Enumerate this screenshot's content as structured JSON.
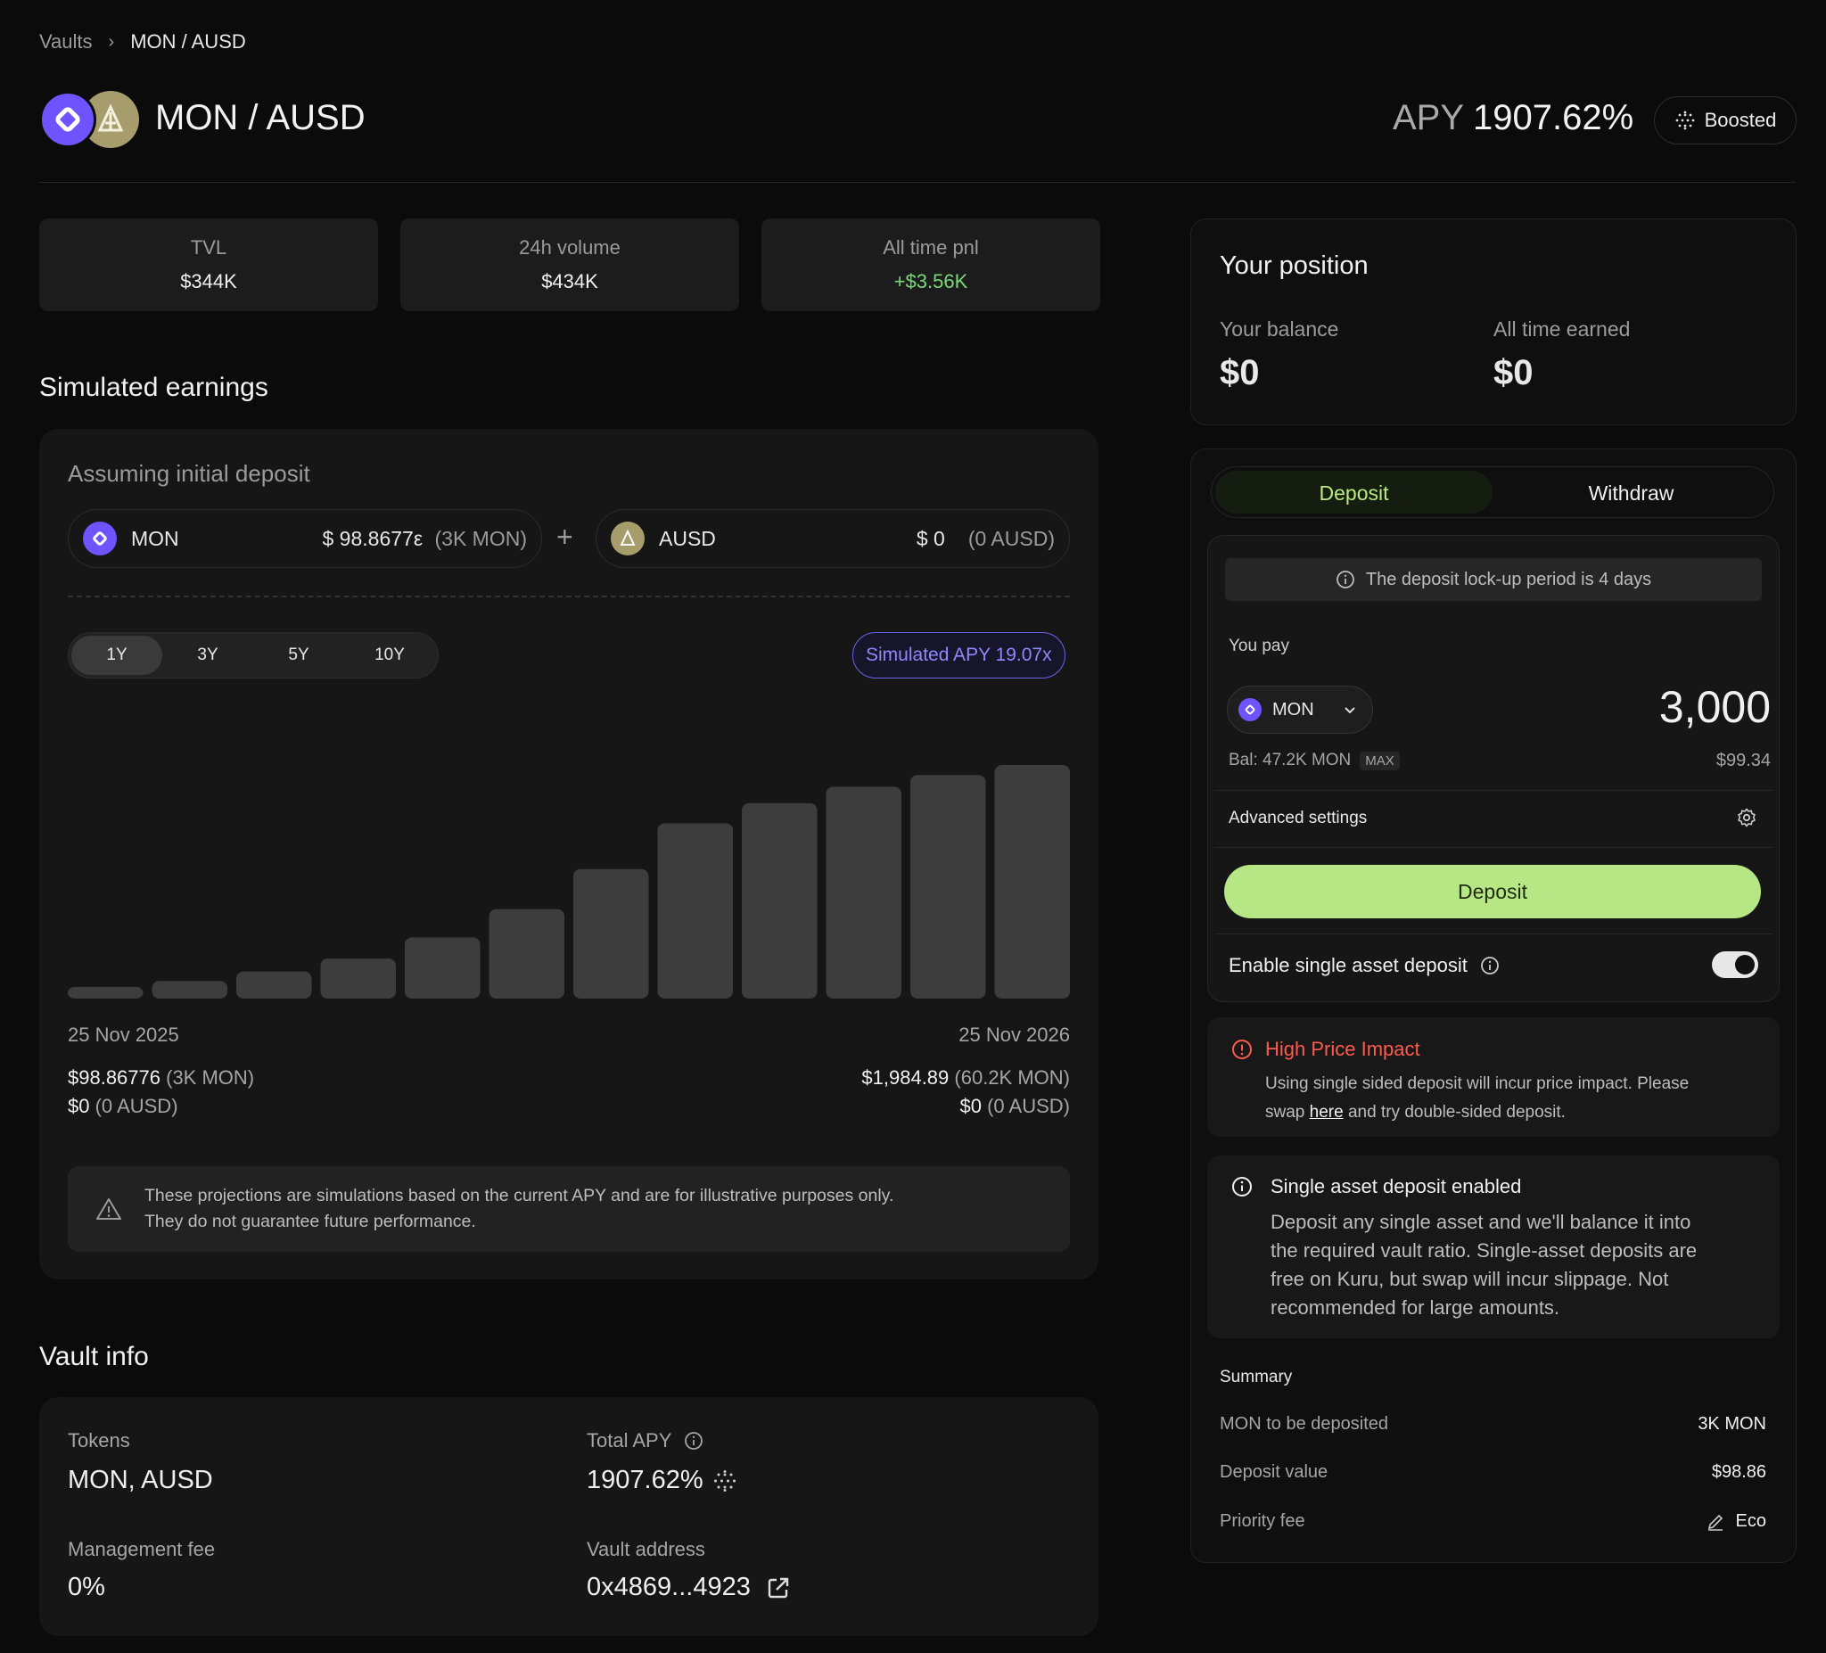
{
  "breadcrumb": {
    "root": "Vaults",
    "separator": "›",
    "current": "MON / AUSD"
  },
  "header": {
    "title": "MON / AUSD",
    "apy_label": "APY",
    "apy_value": "1907.62%",
    "boosted": "Boosted",
    "logos": [
      "mon-logo",
      "ausd-logo"
    ]
  },
  "stats": [
    {
      "label": "TVL",
      "value": "$344K"
    },
    {
      "label": "24h volume",
      "value": "$434K"
    },
    {
      "label": "All time pnl",
      "value": "+$3.56K"
    }
  ],
  "simulated": {
    "heading": "Simulated earnings",
    "assuming": "Assuming initial deposit",
    "token_a": {
      "name": "MON",
      "usd": "$ 98.8677ε",
      "amount": "(3K MON)"
    },
    "plus": "+",
    "token_b": {
      "name": "AUSD",
      "usd": "$ 0",
      "amount": "(0 AUSD)"
    },
    "periods": [
      "1Y",
      "3Y",
      "5Y",
      "10Y"
    ],
    "active_period": "1Y",
    "sim_apy": "Simulated APY 19.07x",
    "start_date": "25 Nov 2025",
    "end_date": "25 Nov 2026",
    "start_a_value": "$98.86776",
    "start_a_amount": "(3K MON)",
    "start_b_value": "$0",
    "start_b_amount": "(0 AUSD)",
    "end_a_value": "$1,984.89",
    "end_a_amount": "(60.2K MON)",
    "end_b_value": "$0",
    "end_b_amount": "(0 AUSD)",
    "disclaimer_1": "These projections are simulations based on the current APY and are for illustrative purposes only.",
    "disclaimer_2": "They do not guarantee future performance."
  },
  "chart_data": {
    "type": "bar",
    "title": "",
    "xlabel": "",
    "ylabel": "",
    "x_start": "25 Nov 2025",
    "x_end": "25 Nov 2026",
    "values": [
      99,
      150,
      230,
      340,
      520,
      760,
      1100,
      1490,
      1660,
      1800,
      1900,
      1985
    ],
    "ylim": [
      0,
      2000
    ],
    "color": "#3d3d3d"
  },
  "vault_info": {
    "heading": "Vault info",
    "tokens_label": "Tokens",
    "tokens_value": "MON, AUSD",
    "total_apy_label": "Total APY",
    "total_apy_value": "1907.62%",
    "fee_label": "Management fee",
    "fee_value": "0%",
    "address_label": "Vault address",
    "address_value": "0x4869...4923"
  },
  "position": {
    "heading": "Your position",
    "balance_label": "Your balance",
    "balance_value": "$0",
    "earned_label": "All time earned",
    "earned_value": "$0"
  },
  "trade": {
    "tabs": [
      "Deposit",
      "Withdraw"
    ],
    "active_tab": "Deposit",
    "lock_notice": "The deposit lock-up period is 4 days",
    "you_pay": "You pay",
    "token": "MON",
    "amount": "3,000",
    "balance": "Bal: 47.2K MON",
    "max": "MAX",
    "usd": "$99.34",
    "advanced": "Advanced settings",
    "deposit_button": "Deposit",
    "single_asset": "Enable single asset deposit",
    "single_enabled": true
  },
  "warning": {
    "title": "High Price Impact",
    "text_1": "Using single sided deposit will incur price impact. Please",
    "text_2a": "swap",
    "link": "here",
    "text_2b": "and try double-sided deposit."
  },
  "info_box": {
    "title": "Single asset deposit enabled",
    "line_1": "Deposit any single asset and we'll balance it into",
    "line_2": "the required vault ratio. Single-asset deposits are",
    "line_3": "free on Kuru, but swap will incur slippage. Not",
    "line_4": "recommended for large amounts."
  },
  "summary": {
    "heading": "Summary",
    "rows": [
      {
        "label": "MON to be deposited",
        "value": "3K MON"
      },
      {
        "label": "Deposit value",
        "value": "$98.86"
      },
      {
        "label": "Priority fee",
        "value": "Eco"
      }
    ]
  },
  "colors": {
    "accent_green": "#b7e784",
    "purple": "#6e54ff",
    "pnl_green": "#7bd87a",
    "warn_red": "#ff5a4e"
  }
}
